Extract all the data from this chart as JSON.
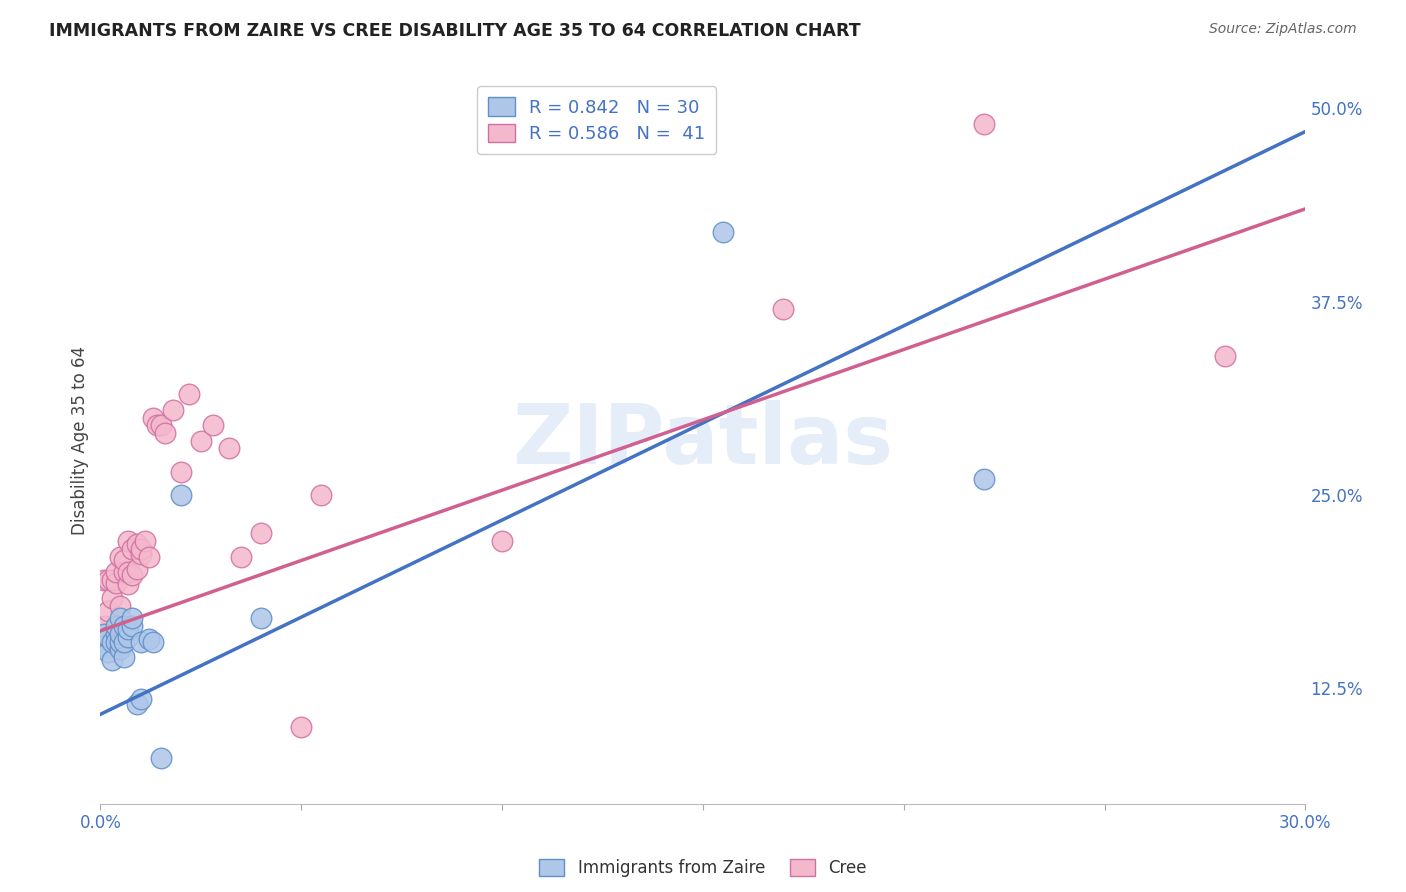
{
  "title": "IMMIGRANTS FROM ZAIRE VS CREE DISABILITY AGE 35 TO 64 CORRELATION CHART",
  "source": "Source: ZipAtlas.com",
  "ylabel": "Disability Age 35 to 64",
  "xlim": [
    0.0,
    0.3
  ],
  "ylim": [
    0.05,
    0.52
  ],
  "xticks": [
    0.0,
    0.05,
    0.1,
    0.15,
    0.2,
    0.25,
    0.3
  ],
  "xticklabels": [
    "0.0%",
    "",
    "",
    "",
    "",
    "",
    "30.0%"
  ],
  "yticks": [
    0.125,
    0.25,
    0.375,
    0.5
  ],
  "yticklabels": [
    "12.5%",
    "25.0%",
    "37.5%",
    "50.0%"
  ],
  "grid_color": "#d0d0d0",
  "background_color": "#ffffff",
  "blue_color": "#aec6e8",
  "pink_color": "#f4b8cc",
  "blue_edge_color": "#6090c8",
  "pink_edge_color": "#d070a0",
  "blue_line_color": "#4472c4",
  "pink_line_color": "#d06090",
  "R_blue": 0.842,
  "N_blue": 30,
  "R_pink": 0.586,
  "N_pink": 41,
  "watermark_text": "ZIPatlas",
  "legend_label_blue": "Immigrants from Zaire",
  "legend_label_pink": "Cree",
  "blue_line_x0": 0.0,
  "blue_line_y0": 0.108,
  "blue_line_x1": 0.3,
  "blue_line_y1": 0.485,
  "pink_line_x0": 0.0,
  "pink_line_y0": 0.162,
  "pink_line_x1": 0.3,
  "pink_line_y1": 0.435,
  "blue_points_x": [
    0.001,
    0.001,
    0.002,
    0.002,
    0.003,
    0.003,
    0.004,
    0.004,
    0.004,
    0.005,
    0.005,
    0.005,
    0.005,
    0.006,
    0.006,
    0.006,
    0.007,
    0.007,
    0.008,
    0.008,
    0.009,
    0.01,
    0.01,
    0.012,
    0.013,
    0.015,
    0.02,
    0.04,
    0.155,
    0.22
  ],
  "blue_points_y": [
    0.152,
    0.16,
    0.148,
    0.158,
    0.143,
    0.155,
    0.16,
    0.155,
    0.165,
    0.15,
    0.155,
    0.16,
    0.17,
    0.145,
    0.155,
    0.165,
    0.158,
    0.163,
    0.165,
    0.17,
    0.115,
    0.118,
    0.155,
    0.157,
    0.155,
    0.08,
    0.25,
    0.17,
    0.42,
    0.26
  ],
  "pink_points_x": [
    0.001,
    0.001,
    0.002,
    0.002,
    0.003,
    0.003,
    0.004,
    0.004,
    0.005,
    0.005,
    0.006,
    0.006,
    0.007,
    0.007,
    0.007,
    0.008,
    0.008,
    0.009,
    0.009,
    0.01,
    0.01,
    0.011,
    0.012,
    0.013,
    0.014,
    0.015,
    0.016,
    0.018,
    0.02,
    0.022,
    0.025,
    0.028,
    0.032,
    0.035,
    0.04,
    0.05,
    0.055,
    0.1,
    0.17,
    0.22,
    0.28
  ],
  "pink_points_y": [
    0.165,
    0.195,
    0.175,
    0.195,
    0.183,
    0.195,
    0.193,
    0.2,
    0.178,
    0.21,
    0.2,
    0.208,
    0.192,
    0.2,
    0.22,
    0.198,
    0.215,
    0.202,
    0.218,
    0.212,
    0.215,
    0.22,
    0.21,
    0.3,
    0.295,
    0.295,
    0.29,
    0.305,
    0.265,
    0.315,
    0.285,
    0.295,
    0.28,
    0.21,
    0.225,
    0.1,
    0.25,
    0.22,
    0.37,
    0.49,
    0.34
  ]
}
